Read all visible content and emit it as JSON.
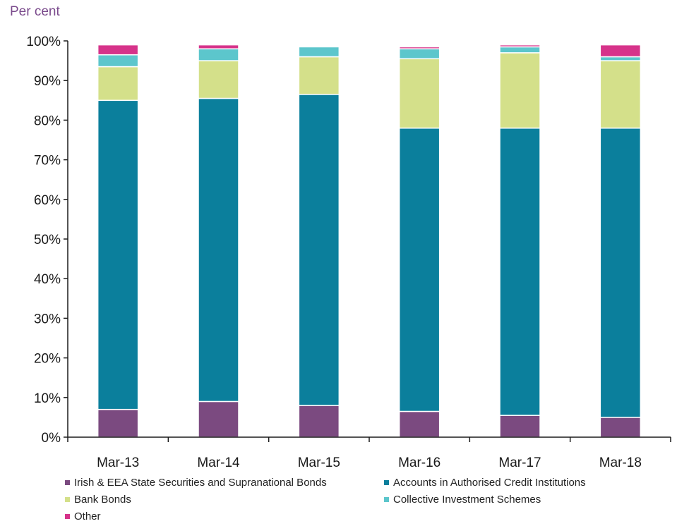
{
  "unit_label": "Per cent",
  "colors": {
    "irish_eea": "#7b4a80",
    "accounts": "#0b7f9c",
    "bank_bonds": "#d4e08a",
    "cis": "#5cc6cc",
    "other": "#d6338a",
    "axis": "#1a1a1a"
  },
  "chart_data": {
    "type": "bar",
    "stacked": true,
    "categories": [
      "Mar-13",
      "Mar-14",
      "Mar-15",
      "Mar-16",
      "Mar-17",
      "Mar-18"
    ],
    "series": [
      {
        "name": "Irish & EEA State Securities and Supranational Bonds",
        "color": "#7b4a80",
        "values": [
          7,
          9,
          8,
          6.5,
          5.5,
          5
        ]
      },
      {
        "name": "Accounts in Authorised Credit Institutions",
        "color": "#0b7f9c",
        "values": [
          78,
          76.5,
          78.5,
          71.5,
          72.5,
          73
        ]
      },
      {
        "name": "Bank Bonds",
        "color": "#d4e08a",
        "values": [
          8.5,
          9.5,
          9.5,
          17.5,
          19,
          17
        ]
      },
      {
        "name": "Collective Investment Schemes",
        "color": "#5cc6cc",
        "values": [
          3,
          3,
          2.5,
          2.5,
          1.5,
          1
        ]
      },
      {
        "name": "Other",
        "color": "#d6338a",
        "values": [
          2.5,
          1,
          0,
          0.5,
          0.5,
          3
        ]
      }
    ],
    "yticks": [
      "0%",
      "10%",
      "20%",
      "30%",
      "40%",
      "50%",
      "60%",
      "70%",
      "80%",
      "90%",
      "100%"
    ],
    "ylim": [
      0,
      100
    ],
    "grid": false,
    "legend_position": "bottom",
    "title": "",
    "xlabel": "",
    "ylabel": ""
  }
}
